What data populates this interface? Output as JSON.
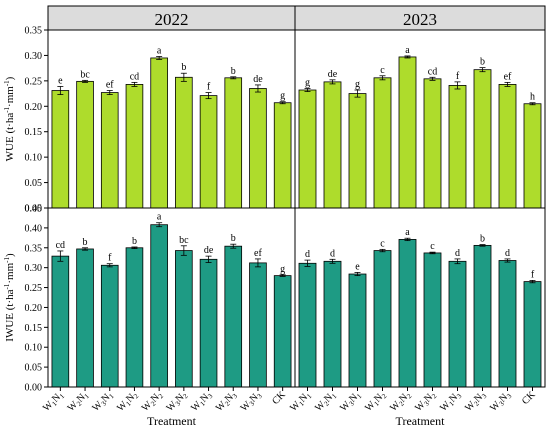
{
  "chart_data": {
    "type": "bar",
    "layout": "2x2 facet grid, years as columns, metrics as rows",
    "categories": [
      "W1N1",
      "W2N1",
      "W3N1",
      "W1N2",
      "W2N2",
      "W3N2",
      "W1N3",
      "W2N3",
      "W3N3",
      "CK"
    ],
    "category_labels": [
      {
        "w": "W",
        "ws": "1",
        "n": "N",
        "ns": "1"
      },
      {
        "w": "W",
        "ws": "2",
        "n": "N",
        "ns": "1"
      },
      {
        "w": "W",
        "ws": "3",
        "n": "N",
        "ns": "1"
      },
      {
        "w": "W",
        "ws": "1",
        "n": "N",
        "ns": "2"
      },
      {
        "w": "W",
        "ws": "2",
        "n": "N",
        "ns": "2"
      },
      {
        "w": "W",
        "ws": "3",
        "n": "N",
        "ns": "2"
      },
      {
        "w": "W",
        "ws": "1",
        "n": "N",
        "ns": "3"
      },
      {
        "w": "W",
        "ws": "2",
        "n": "N",
        "ns": "3"
      },
      {
        "w": "W",
        "ws": "3",
        "n": "N",
        "ns": "3"
      },
      {
        "w": "CK",
        "ws": "",
        "n": "",
        "ns": ""
      }
    ],
    "columns": [
      "2022",
      "2023"
    ],
    "xlabel": "Treatment",
    "rows": [
      {
        "ylabel": {
          "main": "WUE (t·ha",
          "sup1": "-1",
          "mid": "·mm",
          "sup2": "-1",
          "end": ")"
        },
        "color": "#aedc2c",
        "ylim": [
          0,
          0.35
        ],
        "yticks": [
          "0.00",
          "0.05",
          "0.10",
          "0.15",
          "0.20",
          "0.25",
          "0.30",
          "0.35"
        ],
        "panels": [
          {
            "year": "2022",
            "values": [
              0.231,
              0.249,
              0.227,
              0.243,
              0.295,
              0.257,
              0.221,
              0.256,
              0.235,
              0.207
            ],
            "errors": [
              0.008,
              0.002,
              0.004,
              0.004,
              0.003,
              0.008,
              0.006,
              0.002,
              0.007,
              0.002
            ],
            "letters": [
              "e",
              "bc",
              "ef",
              "cd",
              "a",
              "b",
              "f",
              "b",
              "de",
              "g"
            ]
          },
          {
            "year": "2023",
            "values": [
              0.232,
              0.248,
              0.225,
              0.256,
              0.297,
              0.254,
              0.241,
              0.272,
              0.243,
              0.205
            ],
            "errors": [
              0.003,
              0.004,
              0.007,
              0.004,
              0.002,
              0.003,
              0.007,
              0.004,
              0.004,
              0.002
            ],
            "letters": [
              "g",
              "de",
              "g",
              "c",
              "a",
              "cd",
              "f",
              "b",
              "ef",
              "h"
            ]
          }
        ]
      },
      {
        "ylabel": {
          "main": "IWUE (t·ha",
          "sup1": "-1",
          "mid": "·mm",
          "sup2": "-1",
          "end": ")"
        },
        "color": "#1e9b84",
        "ylim": [
          0,
          0.45
        ],
        "yticks": [
          "0.00",
          "0.05",
          "0.10",
          "0.15",
          "0.20",
          "0.25",
          "0.30",
          "0.35",
          "0.40",
          "0.45"
        ],
        "panels": [
          {
            "year": "2022",
            "values": [
              0.329,
              0.347,
              0.306,
              0.35,
              0.408,
              0.343,
              0.321,
              0.354,
              0.312,
              0.28
            ],
            "errors": [
              0.013,
              0.003,
              0.004,
              0.002,
              0.005,
              0.012,
              0.008,
              0.005,
              0.01,
              0.002
            ],
            "letters": [
              "cd",
              "b",
              "f",
              "b",
              "a",
              "bc",
              "de",
              "b",
              "ef",
              "g"
            ]
          },
          {
            "year": "2023",
            "values": [
              0.311,
              0.316,
              0.284,
              0.343,
              0.371,
              0.337,
              0.316,
              0.356,
              0.318,
              0.265
            ],
            "errors": [
              0.008,
              0.005,
              0.004,
              0.003,
              0.003,
              0.002,
              0.006,
              0.002,
              0.004,
              0.003
            ],
            "letters": [
              "d",
              "d",
              "e",
              "c",
              "a",
              "c",
              "d",
              "b",
              "d",
              "f"
            ]
          }
        ]
      }
    ]
  }
}
